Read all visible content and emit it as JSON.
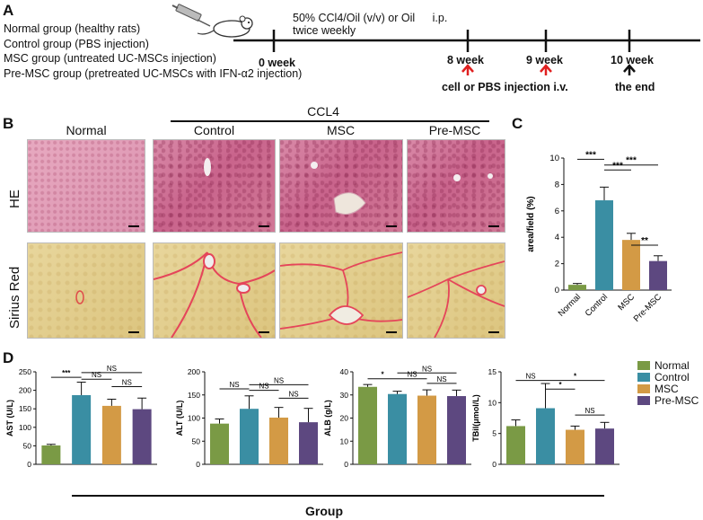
{
  "panel_a": {
    "label": "A",
    "groups": [
      "Normal group (healthy rats)",
      "Control group (PBS injection)",
      "MSC group (untreated UC-MSCs injection)",
      "Pre-MSC group (pretreated UC-MSCs with IFN-α2 injection)"
    ],
    "treatment_line1": "50% CCl4/Oil (v/v) or Oil",
    "treatment_route": "i.p.",
    "treatment_line2": "twice weekly",
    "weeks": [
      "0 week",
      "8 week",
      "9 week",
      "10 week"
    ],
    "injection_label": "cell or PBS injection i.v.",
    "end_label": "the end",
    "colors": {
      "injection_arrow": "#e02020",
      "end_arrow": "#111111"
    }
  },
  "panel_b": {
    "label": "B",
    "ccl4_label": "CCL4",
    "columns": [
      "Normal",
      "Control",
      "MSC",
      "Pre-MSC"
    ],
    "rows": [
      "HE",
      "Sirius Red"
    ]
  },
  "panel_c": {
    "label": "C",
    "sig": [
      "***",
      "***",
      "***",
      "**"
    ]
  },
  "panel_d": {
    "label": "D",
    "group_label": "Group",
    "legend": [
      {
        "name": "Normal",
        "color": "#7a9a45"
      },
      {
        "name": "Control",
        "color": "#3a8ea3"
      },
      {
        "name": "MSC",
        "color": "#d39a45"
      },
      {
        "name": "Pre-MSC",
        "color": "#5d4880"
      }
    ]
  },
  "chart_data": [
    {
      "type": "bar",
      "panel": "C",
      "ylabel": "area/field (%)",
      "categories": [
        "Normal",
        "Control",
        "MSC",
        "Pre-MSC"
      ],
      "values": [
        0.4,
        6.8,
        3.8,
        2.2
      ],
      "errors": [
        0.1,
        1.0,
        0.5,
        0.4
      ],
      "ylim": [
        0,
        10
      ],
      "yticks": [
        0,
        2,
        4,
        6,
        8,
        10
      ],
      "sig": [
        "***",
        "***",
        "***",
        "**"
      ]
    },
    {
      "type": "bar",
      "panel": "D1",
      "ylabel": "AST (U/L)",
      "categories": [
        "Normal",
        "Control",
        "MSC",
        "Pre-MSC"
      ],
      "values": [
        51,
        187,
        158,
        149
      ],
      "errors": [
        3,
        35,
        18,
        30
      ],
      "ylim": [
        0,
        250
      ],
      "yticks": [
        0,
        50,
        100,
        150,
        200,
        250
      ],
      "sig": [
        "***",
        "NS",
        "NS",
        "NS"
      ]
    },
    {
      "type": "bar",
      "panel": "D2",
      "ylabel": "ALT (U/L)",
      "categories": [
        "Normal",
        "Control",
        "MSC",
        "Pre-MSC"
      ],
      "values": [
        88,
        120,
        101,
        91
      ],
      "errors": [
        10,
        28,
        22,
        30
      ],
      "ylim": [
        0,
        200
      ],
      "yticks": [
        0,
        50,
        100,
        150,
        200
      ],
      "sig": [
        "NS",
        "NS",
        "NS",
        "NS"
      ]
    },
    {
      "type": "bar",
      "panel": "D3",
      "ylabel": "ALB (g/L)",
      "categories": [
        "Normal",
        "Control",
        "MSC",
        "Pre-MSC"
      ],
      "values": [
        33.5,
        30.4,
        29.7,
        29.5
      ],
      "errors": [
        1.0,
        1.2,
        2.5,
        2.6
      ],
      "ylim": [
        0,
        40
      ],
      "yticks": [
        0,
        10,
        20,
        30,
        40
      ],
      "sig": [
        "*",
        "NS",
        "NS",
        "NS"
      ]
    },
    {
      "type": "bar",
      "panel": "D4",
      "ylabel": "TBil(μmol/L)",
      "categories": [
        "Normal",
        "Control",
        "MSC",
        "Pre-MSC"
      ],
      "values": [
        6.2,
        9.1,
        5.6,
        5.8
      ],
      "errors": [
        1.0,
        4.0,
        0.6,
        1.0
      ],
      "ylim": [
        0,
        15
      ],
      "yticks": [
        0,
        5,
        10,
        15
      ],
      "sig": [
        "NS",
        "*",
        "*",
        "NS"
      ]
    }
  ]
}
